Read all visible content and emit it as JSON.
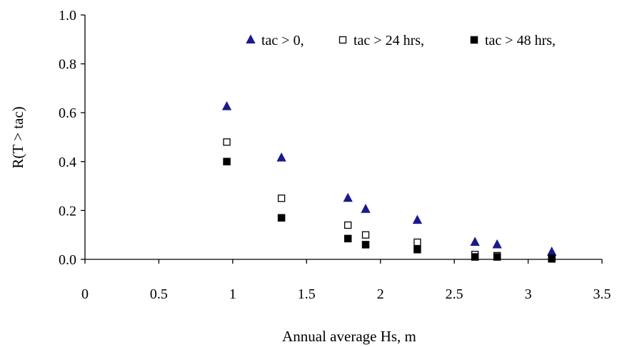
{
  "chart_data": {
    "type": "scatter",
    "title": "",
    "xlabel": "Annual average Hs, m",
    "ylabel": "R(T > tac)",
    "xlim": [
      0,
      3.5
    ],
    "ylim": [
      0,
      1.0
    ],
    "x_ticks": [
      "0",
      "0.5",
      "1",
      "1.5",
      "2",
      "2.5",
      "3",
      "3.5"
    ],
    "y_ticks": [
      "0.0",
      "0.2",
      "0.4",
      "0.6",
      "0.8",
      "1.0"
    ],
    "grid": false,
    "legend_position": "top-right",
    "series": [
      {
        "name": "tac > 0,",
        "marker": "triangle",
        "color": "#1a1a8c",
        "x": [
          0.96,
          1.33,
          1.78,
          1.9,
          2.25,
          2.64,
          2.79,
          3.16
        ],
        "y": [
          0.625,
          0.415,
          0.25,
          0.205,
          0.16,
          0.07,
          0.06,
          0.03
        ]
      },
      {
        "name": "tac > 24 hrs,",
        "marker": "square-open",
        "color": "#000000",
        "x": [
          0.96,
          1.33,
          1.78,
          1.9,
          2.25,
          2.64,
          2.79,
          3.16
        ],
        "y": [
          0.48,
          0.25,
          0.14,
          0.1,
          0.07,
          0.02,
          0.015,
          0.005
        ]
      },
      {
        "name": "tac > 48 hrs,",
        "marker": "square-filled",
        "color": "#000000",
        "x": [
          0.96,
          1.33,
          1.78,
          1.9,
          2.25,
          2.64,
          2.79,
          3.16
        ],
        "y": [
          0.4,
          0.17,
          0.085,
          0.06,
          0.04,
          0.01,
          0.01,
          0.002
        ]
      }
    ]
  }
}
